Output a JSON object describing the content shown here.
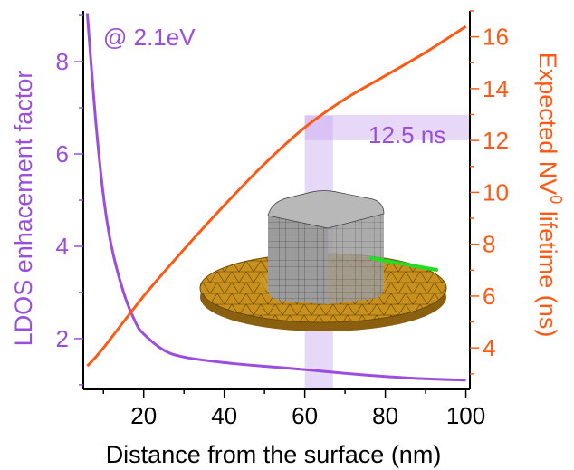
{
  "chart_data": {
    "type": "line",
    "title": "",
    "annotation": "@ 2.1eV",
    "highlight_label": "12.5 ns",
    "highlight": {
      "x_range": [
        60,
        67
      ],
      "y2_value": 12.5
    },
    "xlabel": "Distance from the surface (nm)",
    "ylabel_left": "LDOS enhacement factor",
    "ylabel_right": {
      "prefix": "Expected NV",
      "superscript": "0",
      "suffix": " lifetime (ns)"
    },
    "xlim": [
      5,
      101
    ],
    "ylim_left": [
      0.9,
      9.1
    ],
    "ylim_right": [
      2.4,
      17.0
    ],
    "x_ticks": [
      20,
      40,
      60,
      80,
      100
    ],
    "y_left_ticks": [
      2,
      4,
      6,
      8
    ],
    "y_right_ticks": [
      4,
      6,
      8,
      10,
      12,
      14,
      16
    ],
    "grid": false,
    "series": [
      {
        "axis": "left",
        "color": "#9b4dde",
        "x": [
          6,
          8,
          10,
          12,
          15,
          18,
          20,
          25,
          30,
          40,
          50,
          60,
          70,
          80,
          90,
          100
        ],
        "y": [
          9.05,
          6.8,
          5.1,
          4.0,
          3.0,
          2.35,
          2.1,
          1.75,
          1.6,
          1.48,
          1.4,
          1.33,
          1.25,
          1.18,
          1.13,
          1.1
        ]
      },
      {
        "axis": "right",
        "color": "#ff5a14",
        "x": [
          6,
          10,
          20,
          30,
          40,
          50,
          60,
          70,
          80,
          90,
          100
        ],
        "y": [
          3.3,
          4.0,
          6.0,
          7.8,
          9.5,
          11.1,
          12.5,
          13.6,
          14.5,
          15.4,
          16.4
        ]
      }
    ],
    "colors": {
      "left_axis": "#9b4dde",
      "right_axis": "#ff5a14",
      "axis": "#000000",
      "highlight": "#c9a9ef"
    },
    "inset": {
      "cube_fill": "#9a9a9a",
      "cube_top": "#b5b5b5",
      "disk_fill": "#c8901c",
      "disk_edge": "#6b4a08",
      "nv_color": "#22dd22"
    }
  }
}
